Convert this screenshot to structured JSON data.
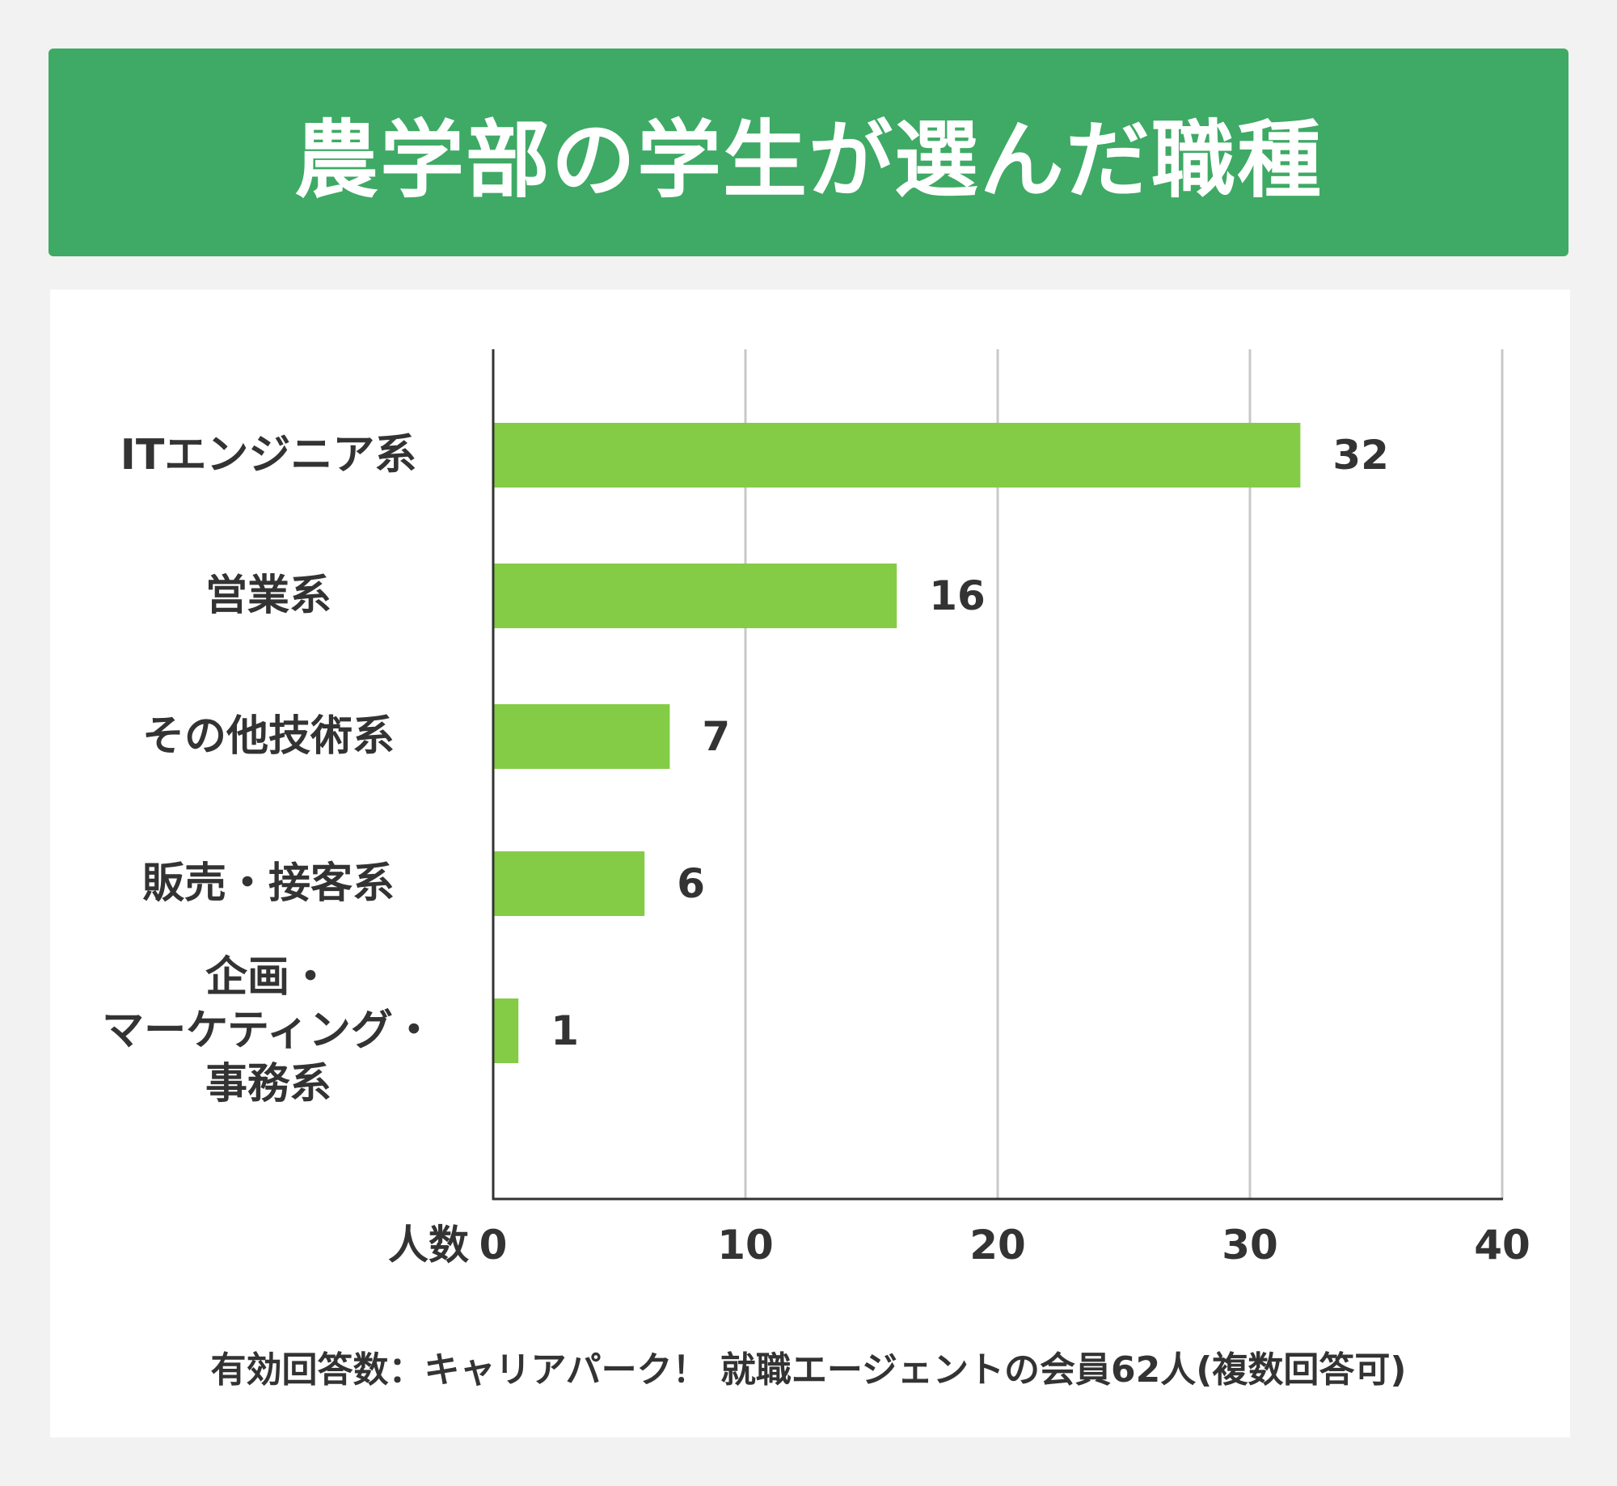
{
  "title": "農学部の学生が選んだ職種",
  "footnote": "有効回答数：キャリアパーク！ 就職エージェントの会員62人(複数回答可)",
  "colors": {
    "header_bg": "#3eaa65",
    "bar": "#84cc46",
    "text": "#333333",
    "grid": "#c8c8c8",
    "axis": "#333333"
  },
  "chart_data": {
    "type": "bar",
    "orientation": "horizontal",
    "categories": [
      [
        "ITエンジニア系"
      ],
      [
        "営業系"
      ],
      [
        "その他技術系"
      ],
      [
        "販売・接客系"
      ],
      [
        "企画・",
        "マーケティング・",
        "事務系"
      ]
    ],
    "values": [
      32,
      16,
      7,
      6,
      1
    ],
    "xlabel": "人数",
    "xlim": [
      0,
      40
    ],
    "xticks": [
      "0",
      "10",
      "20",
      "30",
      "40"
    ],
    "grid": true,
    "data_labels": [
      "32",
      "16",
      "7",
      "6",
      "1"
    ]
  }
}
